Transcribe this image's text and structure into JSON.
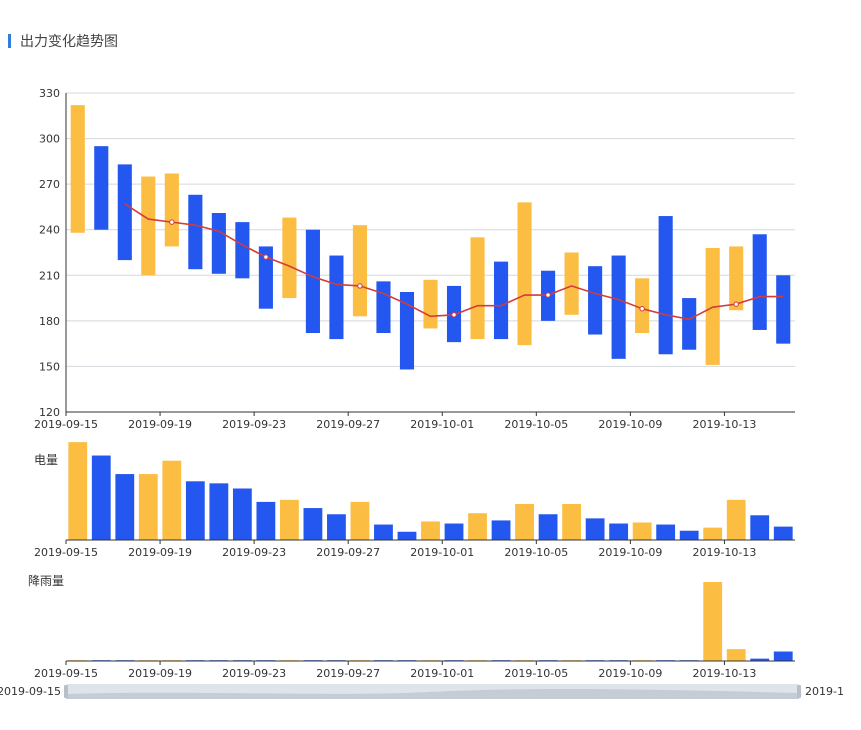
{
  "panel": {
    "title": "出力变化趋势图"
  },
  "colors": {
    "up": "#fbbd42",
    "down": "#2457f0",
    "ma": "#d23c3c",
    "grid": "#d4d8de",
    "axis": "#333333",
    "slider": "#dfe3ea"
  },
  "chart_data": [
    {
      "type": "candlestick",
      "title": "出力变化趋势图",
      "x": [
        "2019-09-15",
        "2019-09-16",
        "2019-09-17",
        "2019-09-18",
        "2019-09-19",
        "2019-09-20",
        "2019-09-21",
        "2019-09-22",
        "2019-09-23",
        "2019-09-24",
        "2019-09-25",
        "2019-09-26",
        "2019-09-27",
        "2019-09-28",
        "2019-09-29",
        "2019-09-30",
        "2019-10-01",
        "2019-10-02",
        "2019-10-03",
        "2019-10-04",
        "2019-10-05",
        "2019-10-06",
        "2019-10-07",
        "2019-10-08",
        "2019-10-09",
        "2019-10-10",
        "2019-10-11",
        "2019-10-12",
        "2019-10-13",
        "2019-10-14",
        "2019-10-15"
      ],
      "x_tick_labels": [
        "2019-09-15",
        "2019-09-19",
        "2019-09-23",
        "2019-09-27",
        "2019-10-01",
        "2019-10-05",
        "2019-10-09",
        "2019-10-13"
      ],
      "series": [
        {
          "values_low_high": [
            [
              238,
              322
            ],
            [
              240,
              295
            ],
            [
              220,
              283
            ],
            [
              210,
              275
            ],
            [
              229,
              277
            ],
            [
              214,
              263
            ],
            [
              211,
              251
            ],
            [
              208,
              245
            ],
            [
              188,
              229
            ],
            [
              195,
              248
            ],
            [
              172,
              240
            ],
            [
              168,
              223
            ],
            [
              183,
              243
            ],
            [
              172,
              206
            ],
            [
              148,
              199
            ],
            [
              175,
              207
            ],
            [
              166,
              203
            ],
            [
              168,
              235
            ],
            [
              168,
              219
            ],
            [
              164,
              258
            ],
            [
              180,
              213
            ],
            [
              184,
              225
            ],
            [
              171,
              216
            ],
            [
              155,
              223
            ],
            [
              172,
              208
            ],
            [
              158,
              249
            ],
            [
              161,
              195
            ],
            [
              151,
              228
            ],
            [
              187,
              229
            ],
            [
              174,
              237
            ],
            [
              165,
              210
            ]
          ],
          "direction": [
            "up",
            "down",
            "down",
            "up",
            "up",
            "down",
            "down",
            "down",
            "down",
            "up",
            "down",
            "down",
            "up",
            "down",
            "down",
            "up",
            "down",
            "up",
            "down",
            "up",
            "down",
            "up",
            "down",
            "down",
            "up",
            "down",
            "down",
            "up",
            "up",
            "down",
            "down"
          ]
        },
        {
          "type": "line",
          "values": [
            null,
            null,
            257,
            247,
            245,
            243,
            239,
            230,
            222,
            216,
            209,
            204,
            203,
            198,
            191,
            183,
            184,
            190,
            190,
            197,
            197,
            203,
            198,
            194,
            188,
            184,
            181,
            189,
            191,
            196,
            196
          ]
        }
      ],
      "ylim": [
        120,
        330
      ],
      "yticks": [
        120,
        150,
        180,
        210,
        240,
        270,
        300,
        330
      ],
      "grid": true
    },
    {
      "type": "bar",
      "title": "电量",
      "x_ref": "same dates",
      "values": [
        95,
        82,
        64,
        64,
        77,
        57,
        55,
        50,
        37,
        39,
        31,
        25,
        37,
        15,
        8,
        18,
        16,
        26,
        19,
        35,
        25,
        35,
        21,
        16,
        17,
        15,
        9,
        12,
        39,
        24,
        13
      ],
      "ylim": [
        0,
        100
      ]
    },
    {
      "type": "bar",
      "title": "降雨量",
      "x_ref": "same dates",
      "values": [
        1,
        1,
        1,
        1,
        1,
        1,
        1,
        1,
        1,
        1,
        1,
        1,
        1,
        1,
        1,
        1,
        1,
        1,
        1,
        1,
        1,
        1,
        1,
        1,
        1,
        1,
        1,
        100,
        15,
        3,
        12
      ],
      "ylim": [
        0,
        100
      ]
    }
  ],
  "dataZoom": {
    "start_label": "2019-09-15",
    "end_label": "2019-1"
  }
}
